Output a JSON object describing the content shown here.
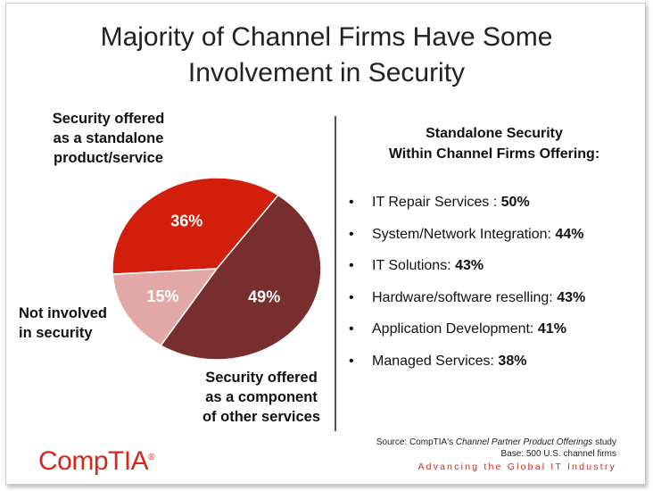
{
  "title_line1": "Majority of Channel Firms Have Some",
  "title_line2": "Involvement in Security",
  "chart_data": {
    "type": "pie",
    "slices": [
      {
        "label_lines": [
          "Security offered",
          "as a standalone",
          "product/service"
        ],
        "value": 36,
        "value_label": "36%",
        "color": "#d21f0c"
      },
      {
        "label_lines": [
          "Security offered",
          "as a component",
          "of other services"
        ],
        "value": 49,
        "value_label": "49%",
        "color": "#782e2c"
      },
      {
        "label_lines": [
          "Not involved",
          "in security"
        ],
        "value": 15,
        "value_label": "15%",
        "color": "#e2a8a7"
      }
    ]
  },
  "right_panel": {
    "heading_line1": "Standalone Security",
    "heading_line2": "Within Channel Firms Offering:",
    "items": [
      {
        "label": "IT Repair Services   :",
        "value": "50%"
      },
      {
        "label": "System/Network Integration:",
        "value": "44%"
      },
      {
        "label": "IT Solutions:",
        "value": "43%"
      },
      {
        "label": "Hardware/software reselling:",
        "value": "43%"
      },
      {
        "label": "Application Development:",
        "value": "41%"
      },
      {
        "label": "Managed Services:",
        "value": "38%"
      }
    ]
  },
  "footer": {
    "logo_text": "CompTIA",
    "logo_mark": "®",
    "source_prefix": "Source: CompTIA's ",
    "source_italic": "Channel Partner Product Offerings",
    "source_suffix": " study",
    "base": "Base: 500 U.S. channel firms",
    "tagline": "Advancing the Global IT Industry"
  }
}
